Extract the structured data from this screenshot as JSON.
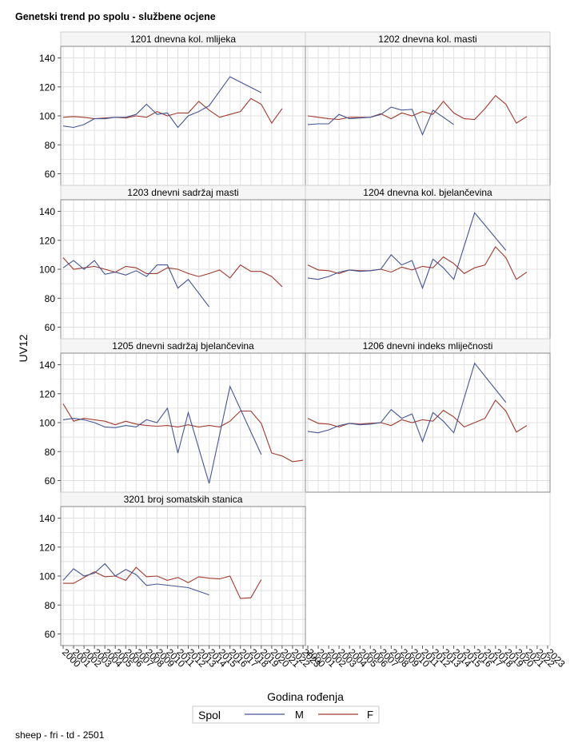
{
  "title": "Genetski trend po spolu - službene ocjene",
  "footer": "sheep - fri - td - 2501",
  "colors": {
    "M": "#445694",
    "F": "#a23a2e",
    "grid": "#e1e1e1",
    "frame": "#8a8a8a",
    "header_bg": "#f5f5f5"
  },
  "chart_data": {
    "type": "line",
    "ylabel": "UV12",
    "xlabel": "Godina rođenja",
    "legend": {
      "title": "Spol",
      "position": "bottom",
      "entries": [
        "M",
        "F"
      ]
    },
    "ylim": [
      52,
      148
    ],
    "yticks": [
      60,
      80,
      100,
      120,
      140
    ],
    "x": [
      "2000",
      "2001",
      "2002",
      "2003",
      "2004",
      "2005",
      "2006",
      "2007",
      "2008",
      "2009",
      "2010",
      "2011",
      "2012",
      "2013",
      "2014",
      "2015",
      "2016",
      "2017",
      "2018",
      "2019",
      "2020",
      "2021",
      "2022",
      "2023"
    ],
    "panels": [
      {
        "name": "1201 dnevna kol. mlijeka",
        "M": [
          93,
          92,
          94,
          98,
          98,
          99,
          99,
          101,
          108,
          101,
          102,
          92,
          100,
          103,
          107,
          null,
          127,
          null,
          null,
          116,
          null,
          null,
          null,
          null
        ],
        "F": [
          99,
          99.5,
          99,
          98,
          98.5,
          99,
          98.5,
          100,
          99,
          103,
          100,
          102,
          102,
          110,
          104,
          99,
          101,
          103,
          112,
          108,
          95,
          105,
          null,
          null
        ]
      },
      {
        "name": "1202 dnevna kol. masti",
        "M": [
          94,
          94.5,
          94.5,
          101,
          98,
          98.5,
          99,
          101,
          106,
          104,
          104.5,
          87,
          104,
          99,
          94,
          null,
          null,
          null,
          null,
          null,
          null,
          null,
          null,
          null
        ],
        "F": [
          100,
          99,
          98,
          97.5,
          99,
          99,
          99,
          101.5,
          98,
          102,
          100,
          103,
          101,
          110,
          102,
          98,
          97.5,
          105,
          114,
          108,
          95,
          99.5,
          null,
          null
        ]
      },
      {
        "name": "1203 dnevni sadržaj masti",
        "M": [
          101,
          106,
          100,
          106,
          96.5,
          98,
          96,
          99,
          95,
          103,
          103,
          87,
          93,
          null,
          74,
          null,
          null,
          null,
          null,
          null,
          null,
          null,
          null,
          null
        ],
        "F": [
          108,
          100,
          101,
          102,
          100,
          98,
          102,
          101,
          97,
          97,
          101,
          100,
          97,
          95,
          97,
          99.5,
          94,
          103,
          98.5,
          98.5,
          95,
          88,
          null,
          null
        ]
      },
      {
        "name": "1204 dnevna kol. bjelančevina",
        "M": [
          94,
          93,
          95,
          98,
          99.5,
          98.5,
          99,
          100,
          110,
          103,
          106,
          87,
          107,
          101,
          93,
          null,
          139,
          null,
          null,
          113,
          null,
          null,
          null,
          null
        ],
        "F": [
          103,
          99.5,
          99,
          97,
          99.5,
          99,
          99,
          100,
          98,
          101.5,
          99.5,
          102,
          101,
          108.5,
          104,
          97,
          101,
          103,
          115.5,
          108,
          93,
          98,
          null,
          null
        ]
      },
      {
        "name": "1205 dnevni sadržaj bjelančevina",
        "M": [
          102,
          103,
          102,
          100,
          97,
          96.5,
          98,
          97,
          102,
          100,
          110,
          79,
          107,
          null,
          58,
          null,
          125,
          null,
          null,
          78,
          null,
          null,
          null,
          null
        ],
        "F": [
          113,
          101,
          103,
          102,
          101,
          98.5,
          101,
          99,
          98,
          97.5,
          98,
          97,
          98.5,
          97,
          98,
          97,
          101,
          108,
          108,
          99.5,
          79,
          77,
          73,
          74
        ]
      },
      {
        "name": "1206 dnevni indeks mliječnosti",
        "M": [
          94,
          93,
          95,
          98,
          99.5,
          98.5,
          99,
          100,
          109,
          103,
          106,
          87,
          107,
          101,
          93,
          null,
          141,
          null,
          null,
          114,
          null,
          null,
          null,
          null
        ],
        "F": [
          103,
          99.5,
          99,
          97,
          99.5,
          99,
          99.5,
          100,
          98,
          102,
          100,
          102,
          101,
          108.5,
          104,
          97,
          100,
          103,
          115.5,
          108,
          93.5,
          98,
          null,
          null
        ]
      },
      {
        "name": "3201 broj somatskih stanica",
        "M": [
          97,
          105,
          100,
          102,
          108.5,
          100,
          104.5,
          101,
          93.5,
          94.5,
          null,
          null,
          92,
          null,
          87,
          null,
          null,
          null,
          null,
          null,
          null,
          null,
          null,
          null
        ],
        "F": [
          95,
          95,
          99,
          103,
          99.5,
          100,
          97,
          106,
          99.5,
          100,
          97,
          99,
          95.5,
          99.5,
          98.5,
          98,
          100,
          84.5,
          85,
          97.5,
          null,
          null,
          null,
          null
        ]
      }
    ]
  }
}
